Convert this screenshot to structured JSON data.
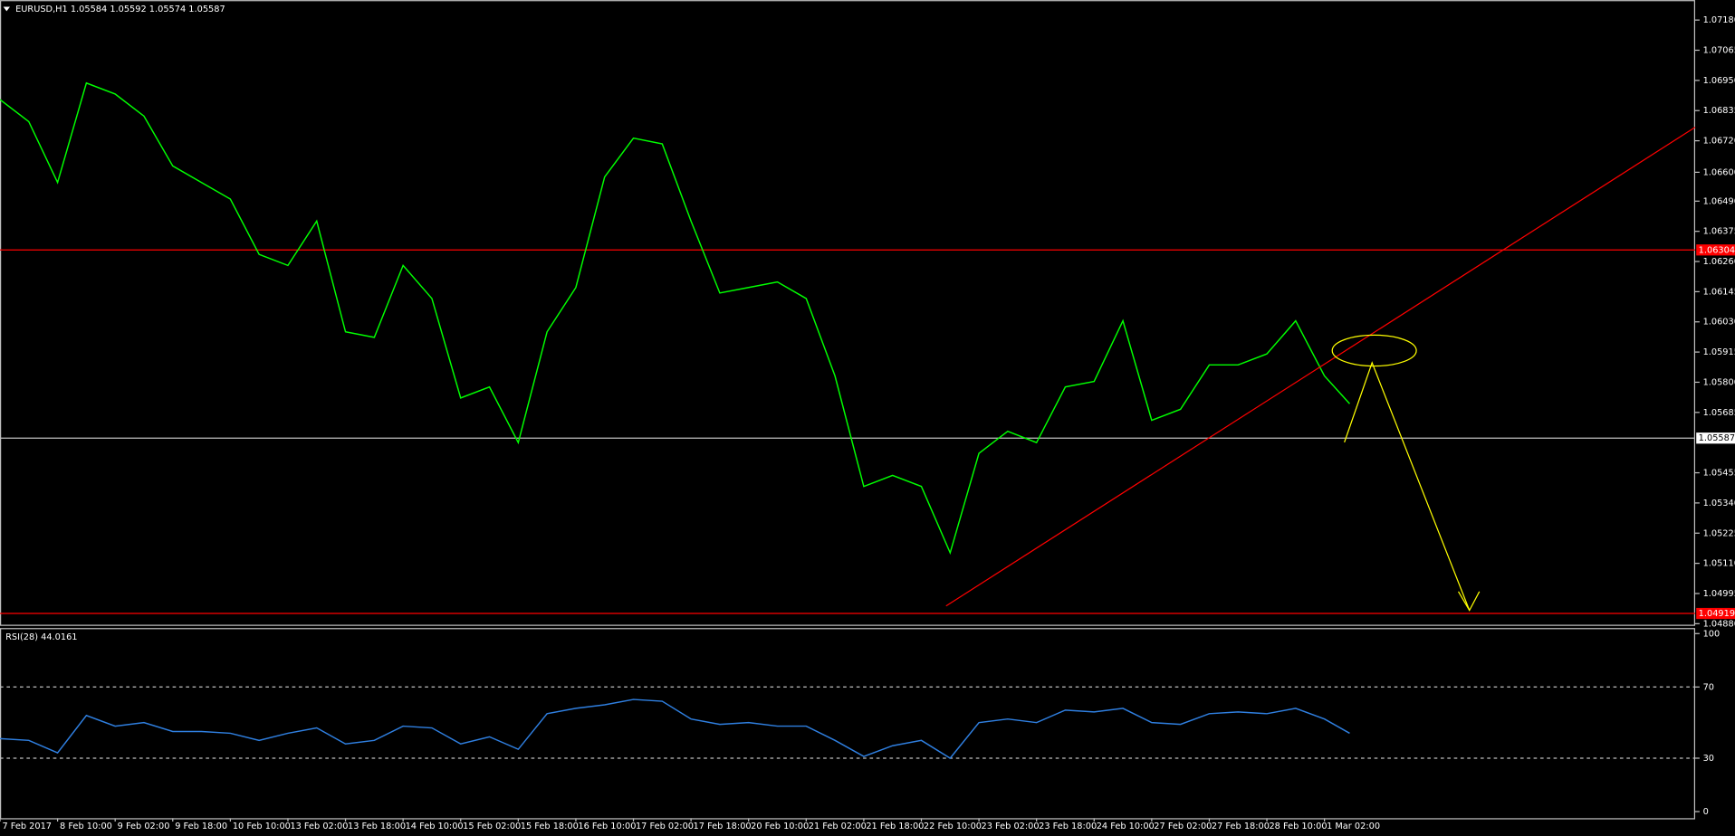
{
  "chart_data": [
    {
      "type": "line",
      "title": "EURUSD,H1  1.05584 1.05592 1.05574 1.05587",
      "x": [
        0,
        8,
        16,
        24,
        32,
        40,
        48,
        56,
        64,
        72,
        80,
        88,
        96,
        104,
        112,
        120,
        128,
        136,
        144,
        152,
        160,
        168,
        176,
        184,
        192,
        200,
        208,
        216,
        224,
        232,
        240,
        248,
        256,
        264,
        272,
        280,
        288,
        296,
        304,
        312,
        320,
        328,
        336,
        344,
        352,
        360,
        368,
        375
      ],
      "series": [
        {
          "color": "#00ff00",
          "values": [
            1.06877,
            1.06793,
            1.06561,
            1.0694,
            1.06898,
            1.06814,
            1.06624,
            1.06561,
            1.06498,
            1.06287,
            1.06245,
            1.06414,
            1.05992,
            1.05971,
            1.06245,
            1.06119,
            1.0574,
            1.05782,
            1.0557,
            1.05992,
            1.06161,
            1.06582,
            1.0673,
            1.06708,
            1.06414,
            1.0614,
            1.06161,
            1.06182,
            1.06119,
            1.05824,
            1.05403,
            1.05445,
            1.05403,
            1.0515,
            1.05529,
            1.05613,
            1.0557,
            1.05782,
            1.05803,
            1.06034,
            1.05655,
            1.05697,
            1.05866,
            1.05866,
            1.05908,
            1.06034,
            1.05824,
            1.05718
          ]
        }
      ],
      "xlim": [
        0,
        471
      ],
      "xticks": [
        {
          "value": 0,
          "label": "7 Feb 2017"
        },
        {
          "value": 16,
          "label": "8 Feb 10:00"
        },
        {
          "value": 32,
          "label": "9 Feb 02:00"
        },
        {
          "value": 48,
          "label": "9 Feb 18:00"
        },
        {
          "value": 64,
          "label": "10 Feb 10:00"
        },
        {
          "value": 80,
          "label": "13 Feb 02:00"
        },
        {
          "value": 96,
          "label": "13 Feb 18:00"
        },
        {
          "value": 112,
          "label": "14 Feb 10:00"
        },
        {
          "value": 128,
          "label": "15 Feb 02:00"
        },
        {
          "value": 144,
          "label": "15 Feb 18:00"
        },
        {
          "value": 160,
          "label": "16 Feb 10:00"
        },
        {
          "value": 176,
          "label": "17 Feb 02:00"
        },
        {
          "value": 192,
          "label": "17 Feb 18:00"
        },
        {
          "value": 208,
          "label": "20 Feb 10:00"
        },
        {
          "value": 224,
          "label": "21 Feb 02:00"
        },
        {
          "value": 240,
          "label": "21 Feb 18:00"
        },
        {
          "value": 256,
          "label": "22 Feb 10:00"
        },
        {
          "value": 272,
          "label": "23 Feb 02:00"
        },
        {
          "value": 288,
          "label": "23 Feb 18:00"
        },
        {
          "value": 304,
          "label": "24 Feb 10:00"
        },
        {
          "value": 320,
          "label": "27 Feb 02:00"
        },
        {
          "value": 336,
          "label": "27 Feb 18:00"
        },
        {
          "value": 352,
          "label": "28 Feb 10:00"
        },
        {
          "value": 368,
          "label": "1 Mar 02:00"
        }
      ],
      "ylim": [
        1.04876,
        1.07256
      ],
      "yticks": [
        {
          "value": 1.0718,
          "label": "1.07180"
        },
        {
          "value": 1.07065,
          "label": "1.07065"
        },
        {
          "value": 1.0695,
          "label": "1.06950"
        },
        {
          "value": 1.06835,
          "label": "1.06835"
        },
        {
          "value": 1.0672,
          "label": "1.06720"
        },
        {
          "value": 1.066,
          "label": "1.06600"
        },
        {
          "value": 1.0649,
          "label": "1.06490"
        },
        {
          "value": 1.06375,
          "label": "1.06375"
        },
        {
          "value": 1.0626,
          "label": "1.06260"
        },
        {
          "value": 1.06145,
          "label": "1.06145"
        },
        {
          "value": 1.0603,
          "label": "1.06030"
        },
        {
          "value": 1.05915,
          "label": "1.05915"
        },
        {
          "value": 1.058,
          "label": "1.05800"
        },
        {
          "value": 1.05685,
          "label": "1.05685"
        },
        {
          "value": 1.05455,
          "label": "1.05455"
        },
        {
          "value": 1.0534,
          "label": "1.05340"
        },
        {
          "value": 1.05225,
          "label": "1.05225"
        },
        {
          "value": 1.0511,
          "label": "1.05110"
        },
        {
          "value": 1.04995,
          "label": "1.04995"
        },
        {
          "value": 1.0488,
          "label": "1.04880"
        }
      ],
      "hlines": [
        {
          "value": 1.06304,
          "label": "1.06304",
          "color": "#ff0000"
        },
        {
          "value": 1.04919,
          "label": "1.04919",
          "color": "#ff0000"
        },
        {
          "value": 1.05587,
          "label": "1.05587",
          "color": "#c0c0c0"
        }
      ]
    },
    {
      "type": "line",
      "title": "RSI(28) 44.0161",
      "x": [
        0,
        8,
        16,
        24,
        32,
        40,
        48,
        56,
        64,
        72,
        80,
        88,
        96,
        104,
        112,
        120,
        128,
        136,
        144,
        152,
        160,
        168,
        176,
        184,
        192,
        200,
        208,
        216,
        224,
        232,
        240,
        248,
        256,
        264,
        272,
        280,
        288,
        296,
        304,
        312,
        320,
        328,
        336,
        344,
        352,
        360,
        368,
        375
      ],
      "series": [
        {
          "color": "#2f7fe0",
          "values": [
            41,
            40,
            33,
            54,
            48,
            50,
            45,
            45,
            44,
            40,
            44,
            47,
            38,
            40,
            48,
            47,
            38,
            42,
            35,
            55,
            58,
            60,
            63,
            62,
            52,
            49,
            50,
            48,
            48,
            40,
            31,
            37,
            40,
            30,
            50,
            52,
            50,
            57,
            56,
            58,
            50,
            49,
            55,
            56,
            55,
            58,
            52,
            44
          ]
        }
      ],
      "xlim": [
        0,
        471
      ],
      "ylim": [
        0,
        100
      ],
      "yticks": [
        0,
        30,
        70,
        100
      ],
      "levels": [
        30,
        70
      ]
    }
  ]
}
